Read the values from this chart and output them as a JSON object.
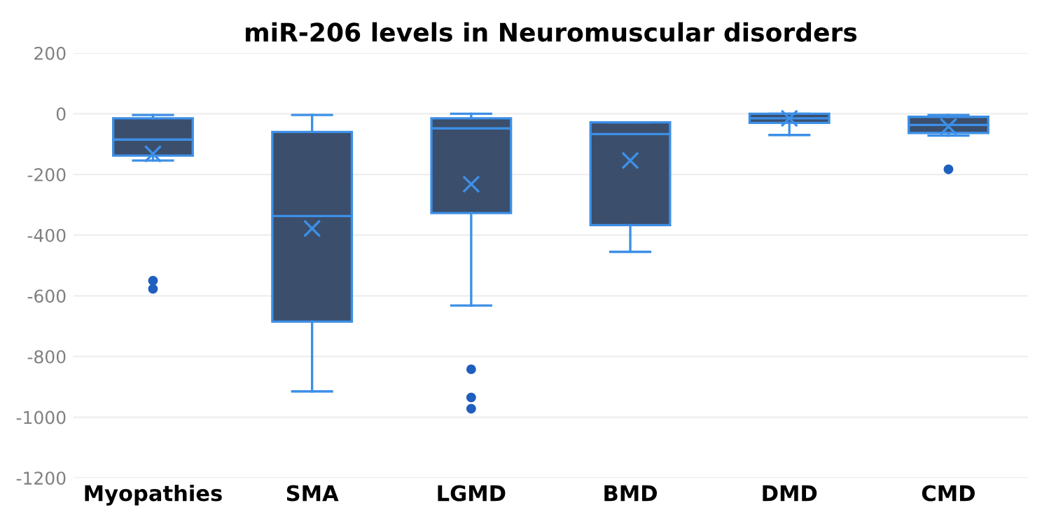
{
  "chart_data": {
    "type": "box",
    "title": "miR-206 levels in Neuromuscular disorders",
    "categories": [
      "Myopathies",
      "SMA",
      "LGMD",
      "BMD",
      "DMD",
      "CMD"
    ],
    "boxes": [
      {
        "low": -154,
        "q1": -138,
        "median": -85,
        "q3": -15,
        "high": -4,
        "mean": -132,
        "outliers": [
          -550,
          -577
        ]
      },
      {
        "low": -915,
        "q1": -685,
        "median": -337,
        "q3": -60,
        "high": -4,
        "mean": -378
      },
      {
        "low": -632,
        "q1": -327,
        "median": -48,
        "q3": -15,
        "high": 0,
        "mean": -232,
        "outliers": [
          -842,
          -935,
          -972
        ]
      },
      {
        "low": -455,
        "q1": -367,
        "median": -67,
        "q3": -28,
        "high": -28,
        "mean": -154
      },
      {
        "low": -70,
        "q1": -30,
        "median": -15,
        "q3": 0,
        "high": 0,
        "mean": -15
      },
      {
        "low": -72,
        "q1": -63,
        "median": -37,
        "q3": -10,
        "high": -4,
        "mean": -42,
        "outliers": [
          -183
        ]
      }
    ],
    "color": "#3b4e6b",
    "ylim": [
      -1200,
      200
    ],
    "yticks": [
      -1200,
      -1000,
      -800,
      -600,
      -400,
      -200,
      0,
      200
    ],
    "grid": "y"
  }
}
